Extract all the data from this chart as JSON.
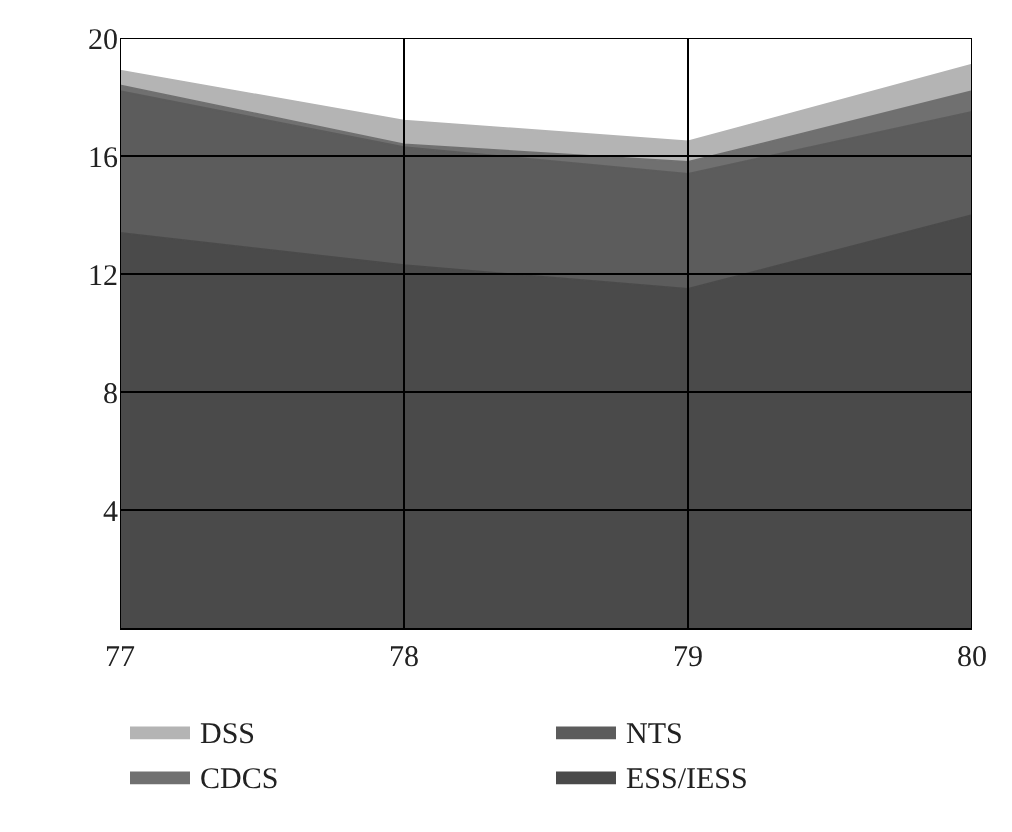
{
  "chart_data": {
    "type": "area",
    "stacked": true,
    "x": [
      77,
      78,
      79,
      80
    ],
    "series": [
      {
        "name": "ESS/IESS",
        "color": "#4a4a4a",
        "values": [
          13.4,
          12.3,
          11.5,
          14.0
        ]
      },
      {
        "name": "NTS",
        "color": "#5c5c5c",
        "values": [
          4.8,
          4.0,
          3.9,
          3.5
        ]
      },
      {
        "name": "CDCS",
        "color": "#707070",
        "values": [
          0.2,
          0.1,
          0.4,
          0.7
        ]
      },
      {
        "name": "DSS",
        "color": "#b4b4b4",
        "values": [
          0.5,
          0.8,
          0.7,
          0.9
        ]
      }
    ],
    "xlim": [
      77,
      80
    ],
    "xticks": [
      77,
      78,
      79,
      80
    ],
    "ylim": [
      0,
      20
    ],
    "yticks": [
      4,
      8,
      12,
      16,
      20
    ],
    "grid": true,
    "legend": "bottom"
  }
}
